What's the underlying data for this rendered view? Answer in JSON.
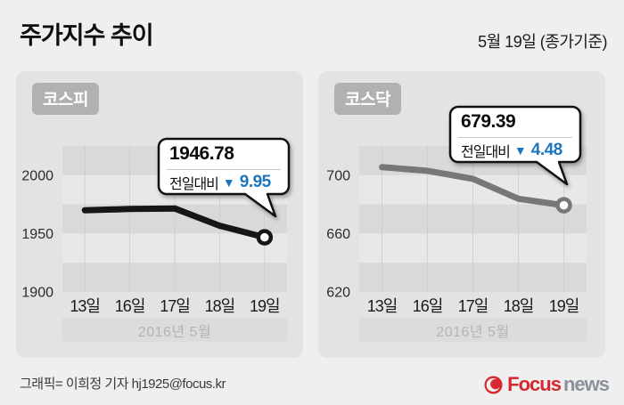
{
  "page": {
    "title": "주가지수 추이",
    "date_note": "5월 19일 (종가기준)",
    "footer_credit": "그래픽= 이희정 기자 hj1925@focus.kr"
  },
  "logo": {
    "brand_primary": "Focus",
    "brand_secondary": "news",
    "primary_color": "#d6282e",
    "secondary_color": "#8b919a"
  },
  "colors": {
    "page_background": "#efefef",
    "panel_background": "#e3e3e3",
    "stripe_dark": "#d9d9d9",
    "stripe_light": "#e8e8e8",
    "badge_background": "#b1b1b1",
    "delta_down_blue": "#1d76bd",
    "kospi_line": "#161616",
    "kosdaq_line": "#777777"
  },
  "chart_data": [
    {
      "type": "line",
      "title": "코스피",
      "x": [
        "13일",
        "16일",
        "17일",
        "18일",
        "19일"
      ],
      "values": [
        1970.0,
        1971.0,
        1971.5,
        1956.73,
        1946.78
      ],
      "ylim": [
        1900,
        2025
      ],
      "yticks": [
        "2000",
        "1950",
        "1900"
      ],
      "ytick_values": [
        2000,
        1950,
        1900
      ],
      "stripe_step": 25,
      "x_axis_group_label": "2016년 5월",
      "line_color": "#161616",
      "grid": "horizontal-stripes-with-vertical-lines",
      "legend": "none",
      "tooltip": {
        "value": "1946.78",
        "label": "전일대비",
        "direction_symbol": "▼",
        "delta": "9.95"
      }
    },
    {
      "type": "line",
      "title": "코스닥",
      "x": [
        "13일",
        "16일",
        "17일",
        "18일",
        "19일"
      ],
      "values": [
        705.5,
        703.0,
        697.5,
        683.87,
        679.39
      ],
      "ylim": [
        620,
        720
      ],
      "yticks": [
        "700",
        "660",
        "620"
      ],
      "ytick_values": [
        700,
        660,
        620
      ],
      "stripe_step": 20,
      "x_axis_group_label": "2016년 5월",
      "line_color": "#777777",
      "grid": "horizontal-stripes-with-vertical-lines",
      "legend": "none",
      "tooltip": {
        "value": "679.39",
        "label": "전일대비",
        "direction_symbol": "▼",
        "delta": "4.48"
      }
    }
  ]
}
